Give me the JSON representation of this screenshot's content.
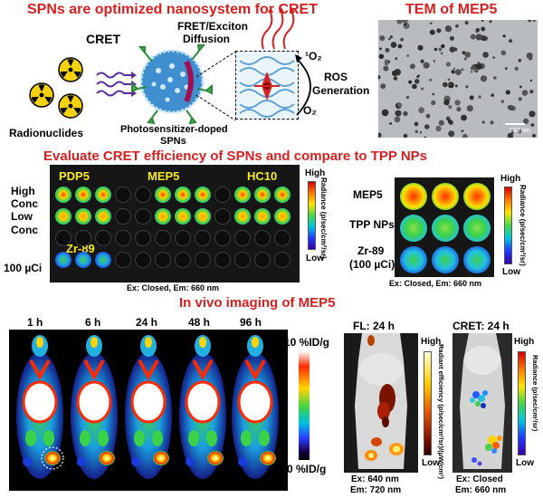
{
  "top": {
    "title": "SPNs are optimized nanosystem for CRET",
    "tem_title": "TEM of MEP5",
    "cret_label": "CRET",
    "fret_label_1": "FRET/Exciton",
    "fret_label_2": "Diffusion",
    "singlet_oxygen": "¹O₂",
    "oxygen": "O₂",
    "ros_label_1": "ROS",
    "ros_label_2": "Generation",
    "radionuclides_label": "Radionuclides",
    "spn_label_1": "Photosensitizer-doped",
    "spn_label_2": "SPNs",
    "scale_bar": "100 nm",
    "hazard_icon": "radiation-hazard-icon",
    "hazard_yellow": "#f5d10a"
  },
  "middle": {
    "title": "Evaluate CRET efficiency of SPNs and compare to TPP NPs",
    "left_row_labels": [
      "High",
      "Conc",
      "Low",
      "Conc",
      "100 µCi"
    ],
    "left_group_labels": [
      "PDP5",
      "MEP5",
      "HC10"
    ],
    "zr_label": "Zr-89",
    "left_caption": "Ex: Closed, Em: 660 nm",
    "colorbar_high": "High",
    "colorbar_low": "Low",
    "radiance_label": "Radiance (p/sec/cm²/sr)",
    "right_row_labels": [
      "MEP5",
      "TPP NPs",
      "Zr-89",
      "(100 µCi)"
    ],
    "right_caption": "Ex: Closed, Em: 660 nm"
  },
  "bottom": {
    "title": "In vivo imaging of MEP5",
    "timepoints": [
      "1 h",
      "6 h",
      "24 h",
      "48 h",
      "96 h"
    ],
    "pet_high": "10 %ID/g",
    "pet_low": "0 %ID/g",
    "fl_title": "FL: 24 h",
    "fl_high": "High",
    "fl_low": "Low",
    "fl_unit": "Radiant efficiency (p/sec/cm²/sr)/(µW/cm²)",
    "fl_ex": "Ex: 640 nm",
    "fl_em": "Em: 720 nm",
    "cret_title": "CRET: 24 h",
    "cret_high": "High",
    "cret_low": "Low",
    "cret_unit": "Radiance (p/sec/cm²/sr)",
    "cret_ex": "Ex: Closed",
    "cret_em": "Em: 660 nm"
  }
}
